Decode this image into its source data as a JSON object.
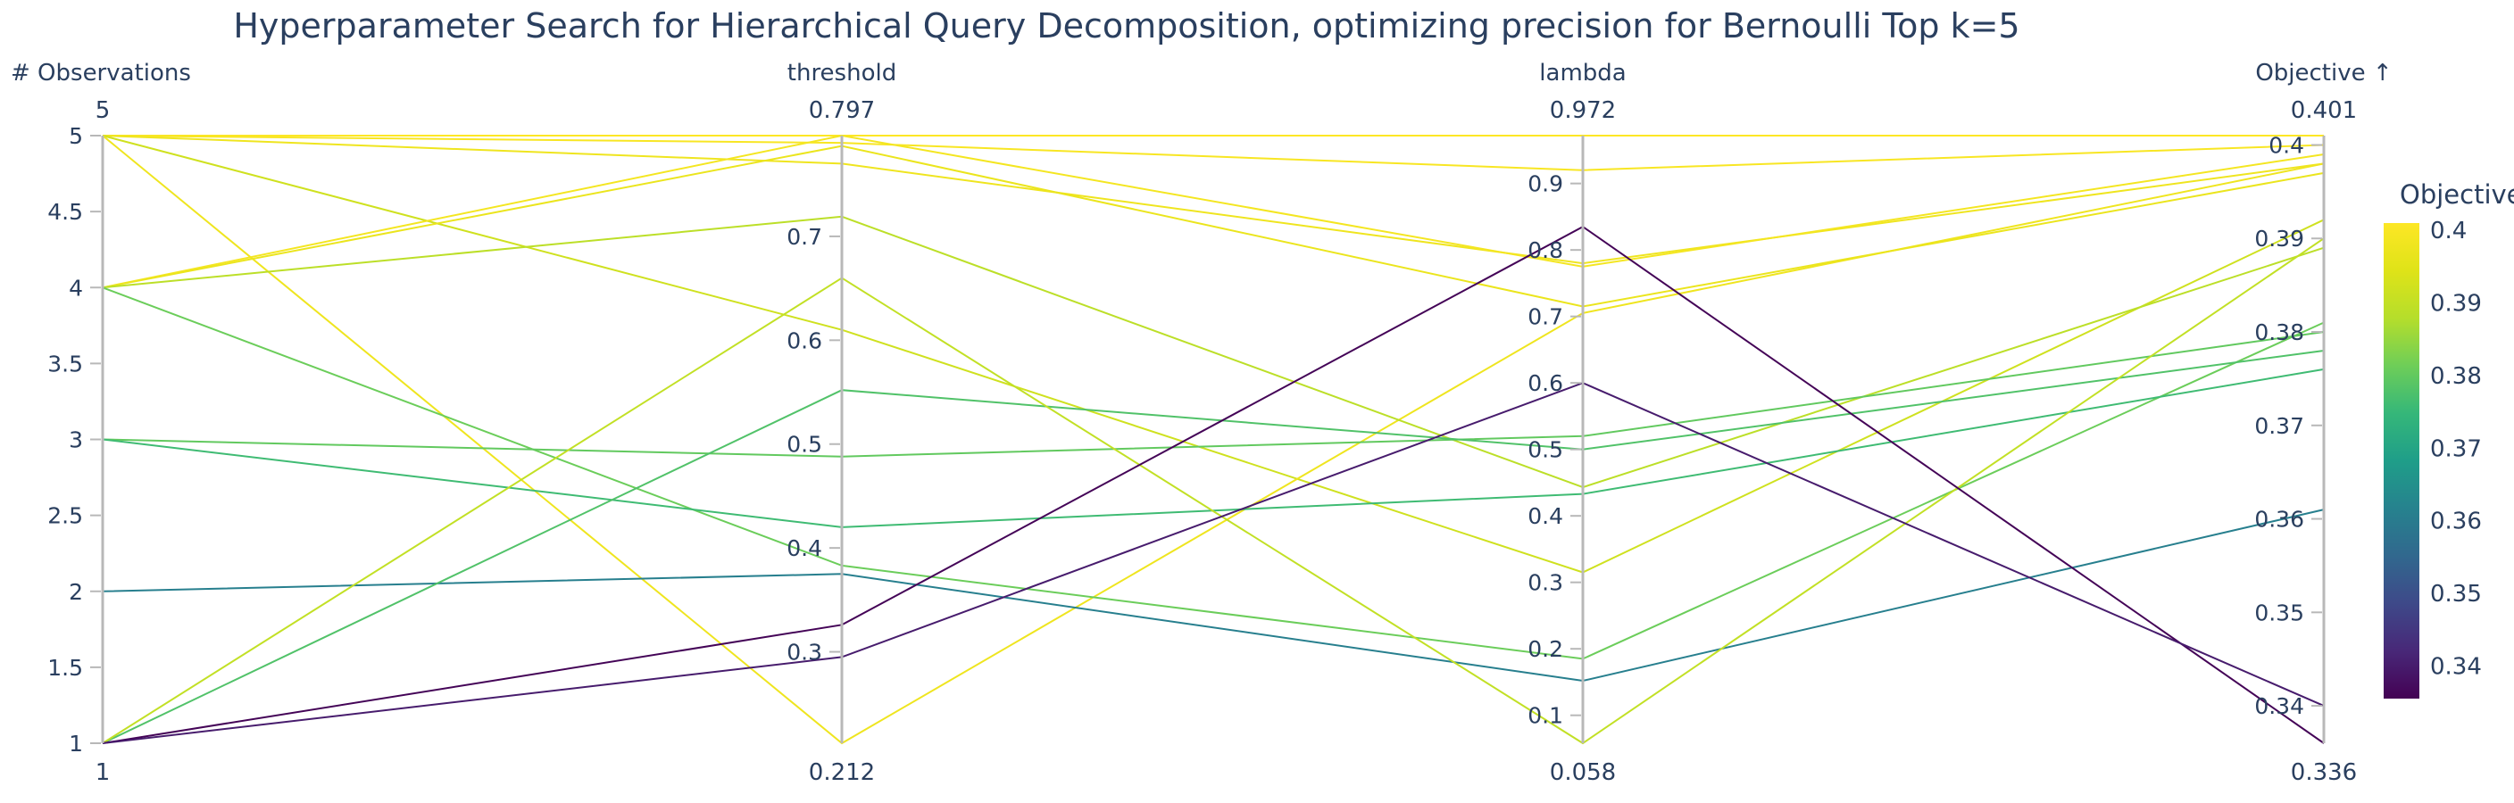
{
  "chart_data": {
    "type": "parallel-coordinates",
    "title": "Hyperparameter Search for Hierarchical Query Decomposition, optimizing precision for Bernoulli Top k=5",
    "legend_position": "right",
    "grid": false,
    "axes": [
      {
        "label": "# Observations",
        "max_label": "5",
        "min_label": "1",
        "range": [
          1,
          5
        ],
        "ticks": [
          {
            "v": 5,
            "label": "5"
          },
          {
            "v": 4.5,
            "label": "4.5"
          },
          {
            "v": 4,
            "label": "4"
          },
          {
            "v": 3.5,
            "label": "3.5"
          },
          {
            "v": 3,
            "label": "3"
          },
          {
            "v": 2.5,
            "label": "2.5"
          },
          {
            "v": 2,
            "label": "2"
          },
          {
            "v": 1.5,
            "label": "1.5"
          },
          {
            "v": 1,
            "label": "1"
          }
        ]
      },
      {
        "label": "threshold",
        "max_label": "0.797",
        "min_label": "0.212",
        "range": [
          0.212,
          0.797
        ],
        "ticks": [
          {
            "v": 0.7,
            "label": "0.7"
          },
          {
            "v": 0.6,
            "label": "0.6"
          },
          {
            "v": 0.5,
            "label": "0.5"
          },
          {
            "v": 0.4,
            "label": "0.4"
          },
          {
            "v": 0.3,
            "label": "0.3"
          }
        ]
      },
      {
        "label": "lambda",
        "max_label": "0.972",
        "min_label": "0.058",
        "range": [
          0.058,
          0.972
        ],
        "ticks": [
          {
            "v": 0.9,
            "label": "0.9"
          },
          {
            "v": 0.8,
            "label": "0.8"
          },
          {
            "v": 0.7,
            "label": "0.7"
          },
          {
            "v": 0.6,
            "label": "0.6"
          },
          {
            "v": 0.5,
            "label": "0.5"
          },
          {
            "v": 0.4,
            "label": "0.4"
          },
          {
            "v": 0.3,
            "label": "0.3"
          },
          {
            "v": 0.2,
            "label": "0.2"
          },
          {
            "v": 0.1,
            "label": "0.1"
          }
        ]
      },
      {
        "label": "Objective ↑",
        "max_label": "0.401",
        "min_label": "0.336",
        "range": [
          0.336,
          0.401
        ],
        "ticks": [
          {
            "v": 0.4,
            "label": "0.4"
          },
          {
            "v": 0.39,
            "label": "0.39"
          },
          {
            "v": 0.38,
            "label": "0.38"
          },
          {
            "v": 0.37,
            "label": "0.37"
          },
          {
            "v": 0.36,
            "label": "0.36"
          },
          {
            "v": 0.35,
            "label": "0.35"
          },
          {
            "v": 0.34,
            "label": "0.34"
          }
        ]
      }
    ],
    "colorbar": {
      "title": "Objective",
      "ticks": [
        {
          "v": 0.4,
          "label": "0.4"
        },
        {
          "v": 0.39,
          "label": "0.39"
        },
        {
          "v": 0.38,
          "label": "0.38"
        },
        {
          "v": 0.37,
          "label": "0.37"
        },
        {
          "v": 0.36,
          "label": "0.36"
        },
        {
          "v": 0.35,
          "label": "0.35"
        },
        {
          "v": 0.34,
          "label": "0.34"
        }
      ],
      "colormap": "viridis",
      "domain": [
        0.3355,
        0.401
      ]
    },
    "runs": [
      {
        "observations": 5,
        "threshold": 0.797,
        "lambda": 0.972,
        "objective": 0.401
      },
      {
        "observations": 5,
        "threshold": 0.79,
        "lambda": 0.92,
        "objective": 0.4
      },
      {
        "observations": 5,
        "threshold": 0.77,
        "lambda": 0.78,
        "objective": 0.398
      },
      {
        "observations": 5,
        "threshold": 0.61,
        "lambda": 0.315,
        "objective": 0.392
      },
      {
        "observations": 5,
        "threshold": 0.212,
        "lambda": 0.705,
        "objective": 0.398
      },
      {
        "observations": 4,
        "threshold": 0.797,
        "lambda": 0.775,
        "objective": 0.399
      },
      {
        "observations": 4,
        "threshold": 0.787,
        "lambda": 0.715,
        "objective": 0.397
      },
      {
        "observations": 4,
        "threshold": 0.719,
        "lambda": 0.443,
        "objective": 0.389
      },
      {
        "observations": 4,
        "threshold": 0.383,
        "lambda": 0.185,
        "objective": 0.381
      },
      {
        "observations": 3,
        "threshold": 0.488,
        "lambda": 0.52,
        "objective": 0.38
      },
      {
        "observations": 3,
        "threshold": 0.42,
        "lambda": 0.433,
        "objective": 0.376
      },
      {
        "observations": 2,
        "threshold": 0.375,
        "lambda": 0.152,
        "objective": 0.361
      },
      {
        "observations": 1,
        "threshold": 0.552,
        "lambda": 0.5,
        "objective": 0.378
      },
      {
        "observations": 1,
        "threshold": 0.66,
        "lambda": 0.058,
        "objective": 0.39
      },
      {
        "observations": 1,
        "threshold": 0.326,
        "lambda": 0.835,
        "objective": 0.336
      },
      {
        "observations": 1,
        "threshold": 0.295,
        "lambda": 0.6,
        "objective": 0.34
      }
    ]
  },
  "colors": {
    "text": "#2a3f5f",
    "axis_line": "#b8b8b8",
    "background": "#ffffff",
    "viridis_stops": [
      "#440154",
      "#482878",
      "#3e4989",
      "#31688e",
      "#26828e",
      "#1f9e89",
      "#35b779",
      "#6ece58",
      "#b5de2b",
      "#dfe318",
      "#fde725"
    ]
  }
}
